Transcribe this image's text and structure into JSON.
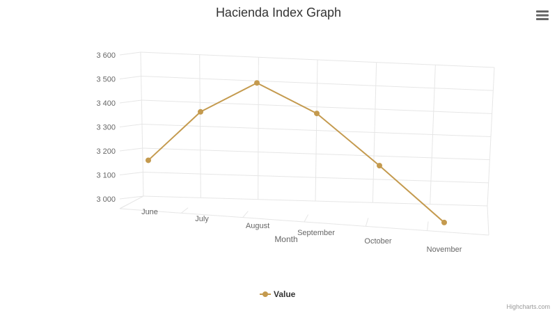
{
  "chart_data": {
    "type": "line",
    "title": "Hacienda Index Graph",
    "xlabel": "Month",
    "ylabel": "",
    "categories": [
      "June",
      "July",
      "August",
      "September",
      "October",
      "November"
    ],
    "series": [
      {
        "name": "Value",
        "values": [
          3115,
          3330,
          3465,
          3355,
          3155,
          2935
        ]
      }
    ],
    "ylim": [
      3000,
      3600
    ],
    "yticks": [
      3000,
      3100,
      3200,
      3300,
      3400,
      3500,
      3600
    ],
    "ytick_labels": [
      "3 000",
      "3 100",
      "3 200",
      "3 300",
      "3 400",
      "3 500",
      "3 600"
    ],
    "grid": true,
    "legend_position": "bottom",
    "color": "#c49a4e"
  },
  "credits": "Highcharts.com",
  "menu_icon": "hamburger-menu-icon"
}
